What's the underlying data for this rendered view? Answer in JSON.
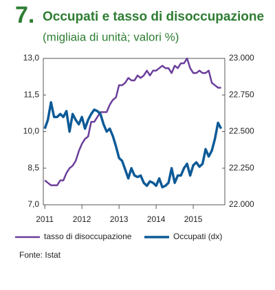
{
  "chart_data": {
    "type": "line",
    "figure_number": "7.",
    "title": "Occupati e tasso di disoccupazione",
    "subtitle": "(migliaia di unità; valori %)",
    "source": "Fonte: Istat",
    "x": [
      2011.0,
      2011.083,
      2011.167,
      2011.25,
      2011.333,
      2011.417,
      2011.5,
      2011.583,
      2011.667,
      2011.75,
      2011.833,
      2011.917,
      2012.0,
      2012.083,
      2012.167,
      2012.25,
      2012.333,
      2012.417,
      2012.5,
      2012.583,
      2012.667,
      2012.75,
      2012.833,
      2012.917,
      2013.0,
      2013.083,
      2013.167,
      2013.25,
      2013.333,
      2013.417,
      2013.5,
      2013.583,
      2013.667,
      2013.75,
      2013.833,
      2013.917,
      2014.0,
      2014.083,
      2014.167,
      2014.25,
      2014.333,
      2014.417,
      2014.5,
      2014.583,
      2014.667,
      2014.75,
      2014.833,
      2014.917,
      2015.0,
      2015.083,
      2015.167,
      2015.25,
      2015.333,
      2015.417,
      2015.5,
      2015.583,
      2015.667,
      2015.75
    ],
    "xlim": [
      2010.96,
      2015.85
    ],
    "xticks": [
      2011,
      2012,
      2013,
      2014,
      2015
    ],
    "ylim": [
      7,
      13
    ],
    "yticks": [
      {
        "value": 7,
        "label": "7,0"
      },
      {
        "value": 8.5,
        "label": "8,5"
      },
      {
        "value": 10,
        "label": "10,0"
      },
      {
        "value": 11.5,
        "label": "11,5"
      },
      {
        "value": 13,
        "label": "13,0"
      }
    ],
    "y2lim": [
      22000,
      23000
    ],
    "y2ticks": [
      {
        "value": 22000,
        "label": "22.000"
      },
      {
        "value": 22250,
        "label": "22.250"
      },
      {
        "value": 22500,
        "label": "22.500"
      },
      {
        "value": 22750,
        "label": "22.750"
      },
      {
        "value": 23000,
        "label": "23.000"
      }
    ],
    "series": [
      {
        "name": "tasso di disoccupazione",
        "color": "#6a3d9a",
        "values": [
          8.0,
          7.9,
          7.8,
          7.8,
          7.8,
          8.0,
          8.0,
          8.3,
          8.5,
          8.6,
          8.8,
          9.2,
          9.5,
          9.7,
          9.8,
          10.4,
          10.4,
          10.6,
          10.8,
          10.8,
          10.8,
          11.1,
          11.3,
          11.4,
          11.9,
          11.9,
          12.0,
          12.2,
          12.1,
          12.1,
          12.3,
          12.2,
          12.3,
          12.5,
          12.3,
          12.5,
          12.5,
          12.6,
          12.7,
          12.6,
          12.6,
          12.4,
          12.7,
          12.6,
          12.8,
          12.8,
          13.0,
          12.6,
          12.4,
          12.4,
          12.5,
          12.4,
          12.4,
          12.5,
          12.0,
          11.9,
          11.8,
          11.8
        ]
      },
      {
        "name": "Occupati (dx)",
        "color": "#0d5a97",
        "axis": "y2",
        "values": [
          22520,
          22580,
          22700,
          22600,
          22600,
          22620,
          22600,
          22640,
          22500,
          22620,
          22580,
          22550,
          22600,
          22520,
          22580,
          22620,
          22650,
          22640,
          22620,
          22550,
          22500,
          22520,
          22470,
          22400,
          22320,
          22300,
          22240,
          22180,
          22250,
          22200,
          22190,
          22200,
          22150,
          22130,
          22160,
          22150,
          22130,
          22180,
          22120,
          22130,
          22150,
          22250,
          22150,
          22200,
          22200,
          22250,
          22280,
          22200,
          22270,
          22290,
          22260,
          22280,
          22380,
          22330,
          22370,
          22450,
          22560,
          22520
        ]
      }
    ],
    "legend": "bottom"
  }
}
